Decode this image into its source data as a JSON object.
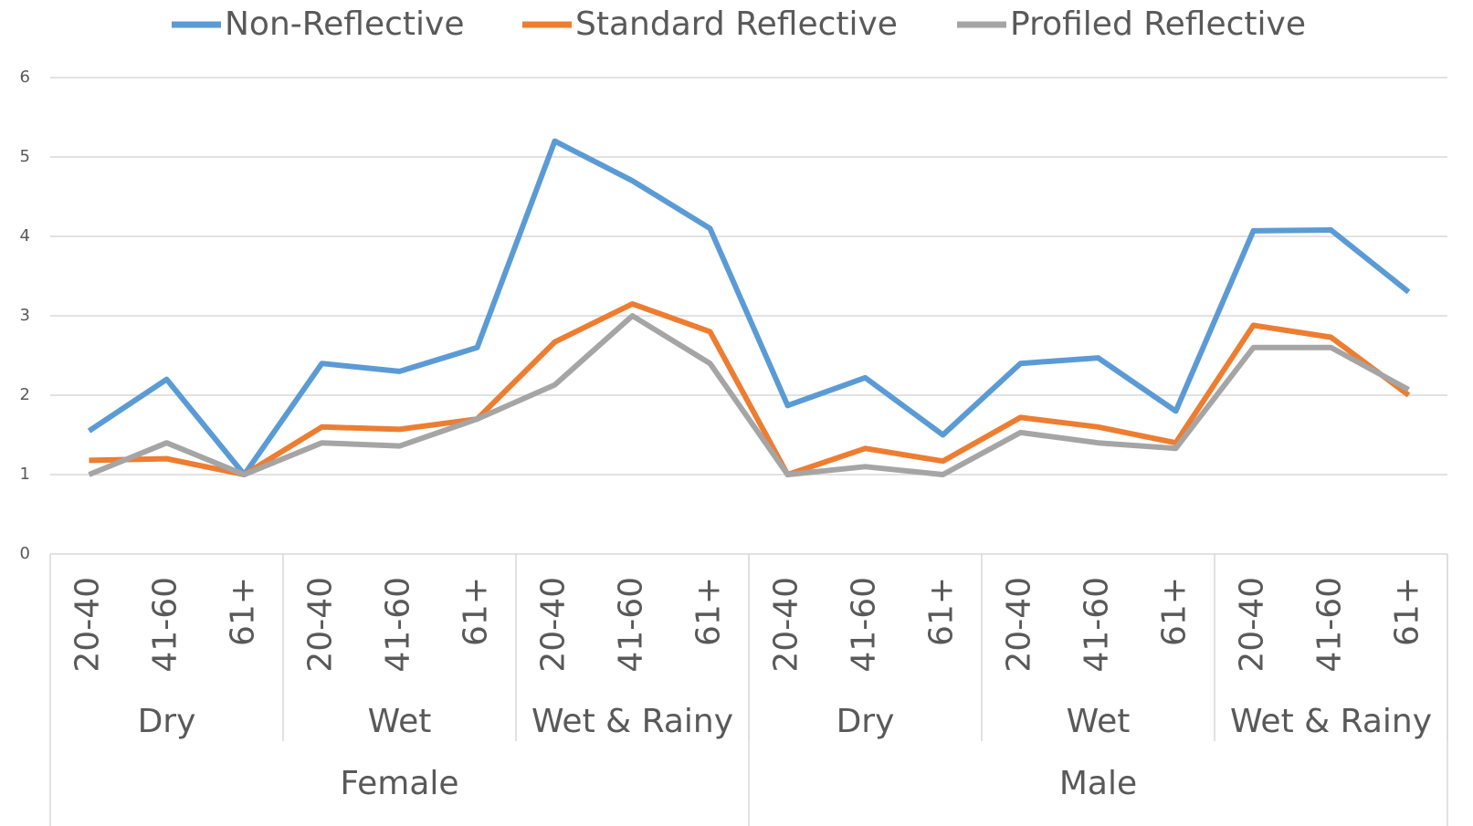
{
  "chart_data": {
    "type": "line",
    "categories": [
      "20-40",
      "41-60",
      "61+",
      "20-40",
      "41-60",
      "61+",
      "20-40",
      "41-60",
      "61+",
      "20-40",
      "41-60",
      "61+",
      "20-40",
      "41-60",
      "61+",
      "20-40",
      "41-60",
      "61+"
    ],
    "category_groups": [
      "Dry",
      "Wet",
      "Wet & Rainy",
      "Dry",
      "Wet",
      "Wet & Rainy"
    ],
    "super_groups": [
      "Female",
      "Male"
    ],
    "series": [
      {
        "name": "Non-Reflective",
        "color": "#5b9bd5",
        "values": [
          1.55,
          2.2,
          1.0,
          2.4,
          2.3,
          2.6,
          5.2,
          4.7,
          4.1,
          1.87,
          2.22,
          1.5,
          2.4,
          2.47,
          1.8,
          4.07,
          4.08,
          3.3
        ]
      },
      {
        "name": "Standard Reflective",
        "color": "#ed7d31",
        "values": [
          1.18,
          1.2,
          1.0,
          1.6,
          1.57,
          1.7,
          2.67,
          3.15,
          2.8,
          1.0,
          1.33,
          1.17,
          1.72,
          1.6,
          1.4,
          2.88,
          2.73,
          2.0
        ]
      },
      {
        "name": "Profiled Reflective",
        "color": "#a5a5a5",
        "values": [
          1.0,
          1.4,
          1.0,
          1.4,
          1.36,
          1.7,
          2.13,
          3.0,
          2.4,
          1.0,
          1.1,
          1.0,
          1.53,
          1.4,
          1.33,
          2.6,
          2.6,
          2.07
        ]
      }
    ],
    "ylim": [
      0,
      6
    ],
    "yticks": [
      0,
      1,
      2,
      3,
      4,
      5,
      6
    ],
    "grid": true,
    "legend": "top"
  }
}
